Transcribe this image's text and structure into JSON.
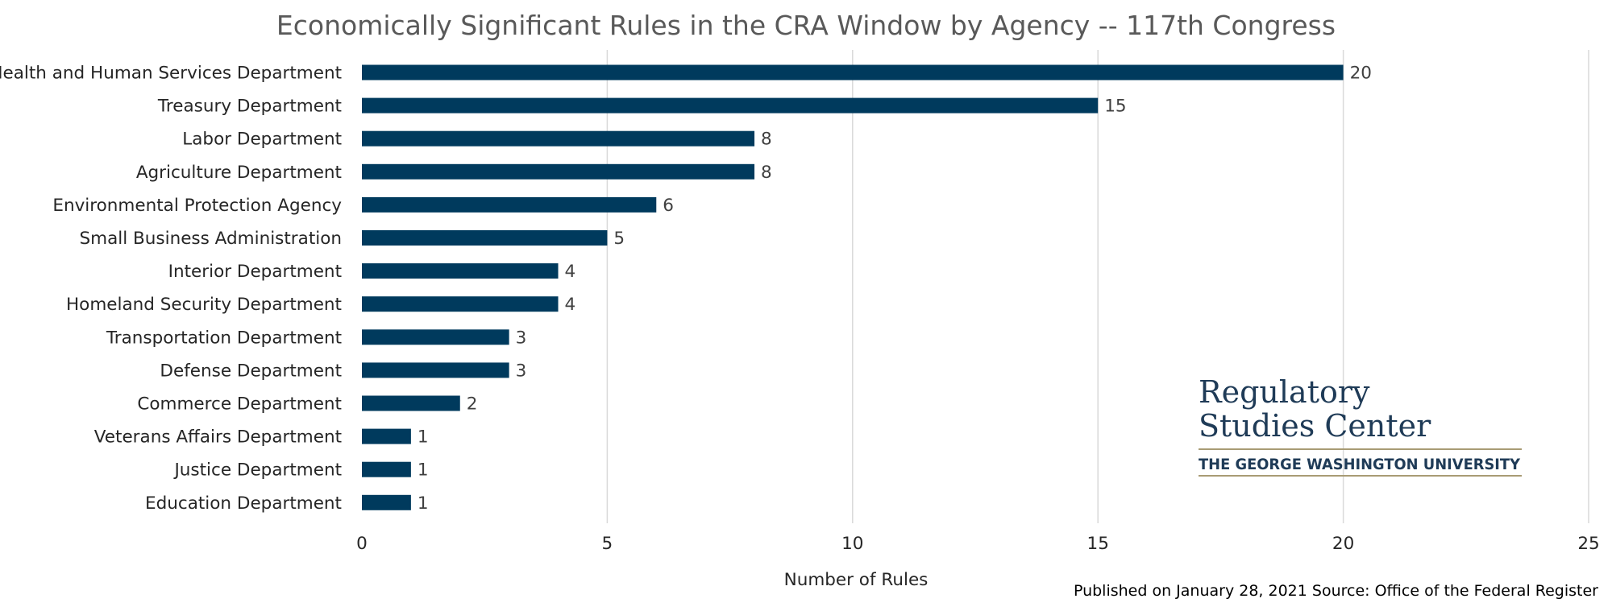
{
  "chart_data": {
    "type": "bar",
    "orientation": "horizontal",
    "title": "Economically Significant Rules in the CRA Window by Agency -- 117th Congress",
    "xlabel": "Number of Rules",
    "ylabel": "",
    "categories": [
      "Health and Human Services Department",
      "Treasury Department",
      "Labor Department",
      "Agriculture Department",
      "Environmental Protection Agency",
      "Small Business Administration",
      "Interior Department",
      "Homeland Security Department",
      "Transportation Department",
      "Defense Department",
      "Commerce Department",
      "Veterans Affairs Department",
      "Justice Department",
      "Education Department"
    ],
    "values": [
      20,
      15,
      8,
      8,
      6,
      5,
      4,
      4,
      3,
      3,
      2,
      1,
      1,
      1
    ],
    "xlim": [
      0,
      25
    ],
    "xticks": [
      0,
      5,
      10,
      15,
      20,
      25
    ],
    "grid": true,
    "data_labels": true,
    "legend": "none",
    "bar_color": "#003a5d",
    "grid_color": "#d9d9d9"
  },
  "footnote": "Published on January 28, 2021  Source: Office of the Federal Register",
  "logo": {
    "line1": "Regulatory",
    "line2": "Studies Center",
    "subline": "THE GEORGE WASHINGTON UNIVERSITY",
    "text_color": "#1f3b57",
    "rule_color": "#a89b74"
  }
}
